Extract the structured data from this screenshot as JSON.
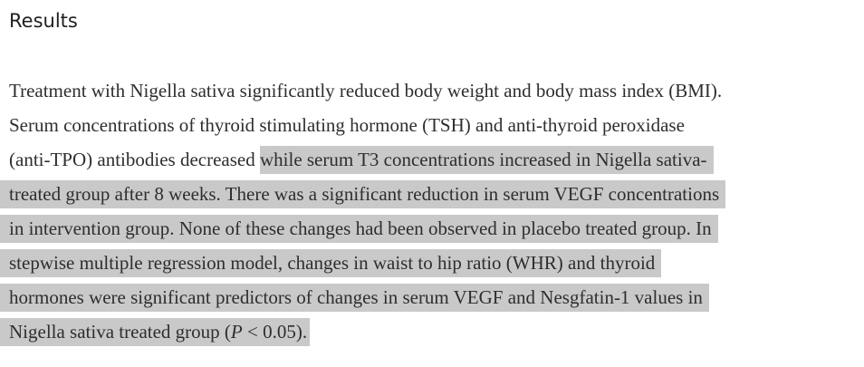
{
  "colors": {
    "background": "#ffffff",
    "body_text": "#2e2e2e",
    "heading_text": "#1f1f1f",
    "selection_highlight": "#c9c9c9"
  },
  "heading": {
    "text": "Results"
  },
  "paragraph": {
    "lines": [
      {
        "segments": [
          {
            "text": "Treatment with Nigella sativa significantly reduced body weight and body mass index (BMI).",
            "highlight": false
          }
        ]
      },
      {
        "segments": [
          {
            "text": "Serum concentrations of thyroid stimulating hormone (TSH) and anti-thyroid peroxidase",
            "highlight": false
          }
        ]
      },
      {
        "segments": [
          {
            "text": "(anti-TPO) antibodies decreased ",
            "highlight": false
          },
          {
            "text": "while serum T3 concentrations increased in Nigella sativa-",
            "highlight": true
          }
        ]
      },
      {
        "segments": [
          {
            "text": "treated group after 8 weeks. There was a significant reduction in serum VEGF concentrations",
            "highlight": true
          }
        ]
      },
      {
        "segments": [
          {
            "text": "in intervention group. None of these changes had been observed in placebo treated group. In",
            "highlight": true
          }
        ]
      },
      {
        "segments": [
          {
            "text": "stepwise multiple regression model, changes in waist to hip ratio (WHR) and thyroid",
            "highlight": true
          }
        ]
      },
      {
        "segments": [
          {
            "text": "hormones were significant predictors of changes in serum VEGF and Nesgfatin-1 values in",
            "highlight": true
          }
        ]
      },
      {
        "segments": [
          {
            "text": "Nigella sativa treated group (",
            "highlight": true
          },
          {
            "text": "P",
            "highlight": true,
            "italic": true
          },
          {
            "text": " < 0.05).",
            "highlight": true
          }
        ]
      }
    ]
  }
}
